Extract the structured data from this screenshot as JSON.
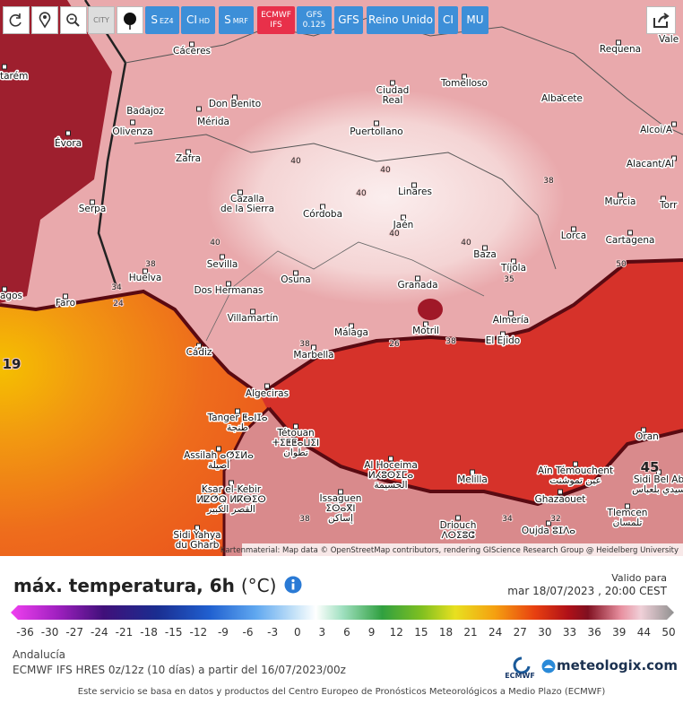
{
  "toolbar": {
    "city_toggle": "CITY",
    "buttons": [
      {
        "label": "S",
        "sub": "EZ4"
      },
      {
        "label": "CI",
        "sub": "HD"
      },
      {
        "label": "S",
        "sub": "MRF"
      },
      {
        "label": "ECMWF",
        "sub": "IFS"
      },
      {
        "label": "GFS",
        "sub": "0.125"
      },
      {
        "label": "GFS"
      },
      {
        "label": "Reino Unido"
      },
      {
        "label": "CI"
      },
      {
        "label": "MU"
      }
    ]
  },
  "map": {
    "cities": [
      [
        "Cáceres"
      ],
      [
        "Requena"
      ],
      [
        "Vale"
      ],
      [
        "tarém"
      ],
      [
        "Tomelloso"
      ],
      [
        "Ciudad",
        "Real"
      ],
      [
        "Albacete"
      ],
      [
        "Don Benito"
      ],
      [
        "Badajoz"
      ],
      [
        "Mérida"
      ],
      [
        "Olivenza"
      ],
      [
        "Évora"
      ],
      [
        "Puertollano"
      ],
      [
        "Alcoi/A"
      ],
      [
        "Zafra"
      ],
      [
        "Alacant/Al"
      ],
      [
        "Linares"
      ],
      [
        "Cazalla",
        "de la Sierra"
      ],
      [
        "Serpa"
      ],
      [
        "Murcia"
      ],
      [
        "Córdoba"
      ],
      [
        "Jaén"
      ],
      [
        "Torr"
      ],
      [
        "Lorca"
      ],
      [
        "Cartagena"
      ],
      [
        "Baza"
      ],
      [
        "Sevilla"
      ],
      [
        "Tíjola"
      ],
      [
        "Huelva"
      ],
      [
        "Osuna"
      ],
      [
        "Granada"
      ],
      [
        "Dos Hermanas"
      ],
      [
        "agos"
      ],
      [
        "Faro"
      ],
      [
        "Villamartín"
      ],
      [
        "Almería"
      ],
      [
        "Málaga"
      ],
      [
        "Motril"
      ],
      [
        "El Ejido"
      ],
      [
        "Cádiz"
      ],
      [
        "Marbella"
      ],
      [
        "Algeciras"
      ],
      [
        "Tanger ⵟⴰⵏⵊⴰ",
        "طنجة"
      ],
      [
        "Tétouan",
        "ⵜⵉⵟⵟⴰⵡⵉⵏ",
        "تطوان"
      ],
      [
        "Oran"
      ],
      [
        "Assilah ⴰⵚⵉⵍⴰ",
        "أصيلة"
      ],
      [
        "Al Hoceima",
        "ⵍⵃⵓⵙⵉⵎⴰ",
        "الحسيمة"
      ],
      [
        "Aïn Témouchent",
        "عين تموشنت"
      ],
      [
        "Melilla"
      ],
      [
        "Sidi Bel Ab",
        "سيدي بلعباس"
      ],
      [
        "Ksar el-Kebir",
        "ⵍⵇⵚⵕ ⵍⴽⴱⵉⵔ",
        "القصر الكبير"
      ],
      [
        "Issaguen",
        "ⵉⵙⴰⴳⵏ",
        "إساكن"
      ],
      [
        "Ghazaouet"
      ],
      [
        "Tlemcen",
        "تلمسان"
      ],
      [
        "Driouch",
        "ⴷⵔⵉⵓⵛ"
      ],
      [
        "Oujda ⵓⵊⴷⴰ"
      ],
      [
        "Sidi Yahya",
        "du Gharb"
      ]
    ],
    "isotherms": [
      40,
      40,
      40,
      40,
      40,
      40,
      38,
      34,
      24,
      35,
      38,
      26,
      38,
      38,
      50,
      38,
      34,
      32,
      45,
      19
    ],
    "attribution": "Kartenmaterial: Map data © OpenStreetMap contributors, rendering GIScience Research Group @ Heidelberg University"
  },
  "legend": {
    "title": "máx. temperatura, 6h",
    "unit": "(°C)",
    "valid_label": "Valido para",
    "valid_time": "mar 18/07/2023 , 20:00 CEST",
    "ticks": [
      -36,
      -30,
      -27,
      -24,
      -21,
      -18,
      -15,
      -12,
      -9,
      -6,
      -3,
      0,
      3,
      6,
      9,
      12,
      15,
      18,
      21,
      24,
      27,
      30,
      33,
      36,
      39,
      44,
      50
    ]
  },
  "footer": {
    "region": "Andalucía",
    "model": "ECMWF IFS HRES 0z/12z (10 días) a partir del 16/07/2023/00z",
    "ecmwf": "ECMWF",
    "brand": "meteologix.com",
    "note": "Este servicio se basa en datos y productos del Centro Europeo de Pronósticos Meteorológicos a Medio Plazo (ECMWF)"
  }
}
